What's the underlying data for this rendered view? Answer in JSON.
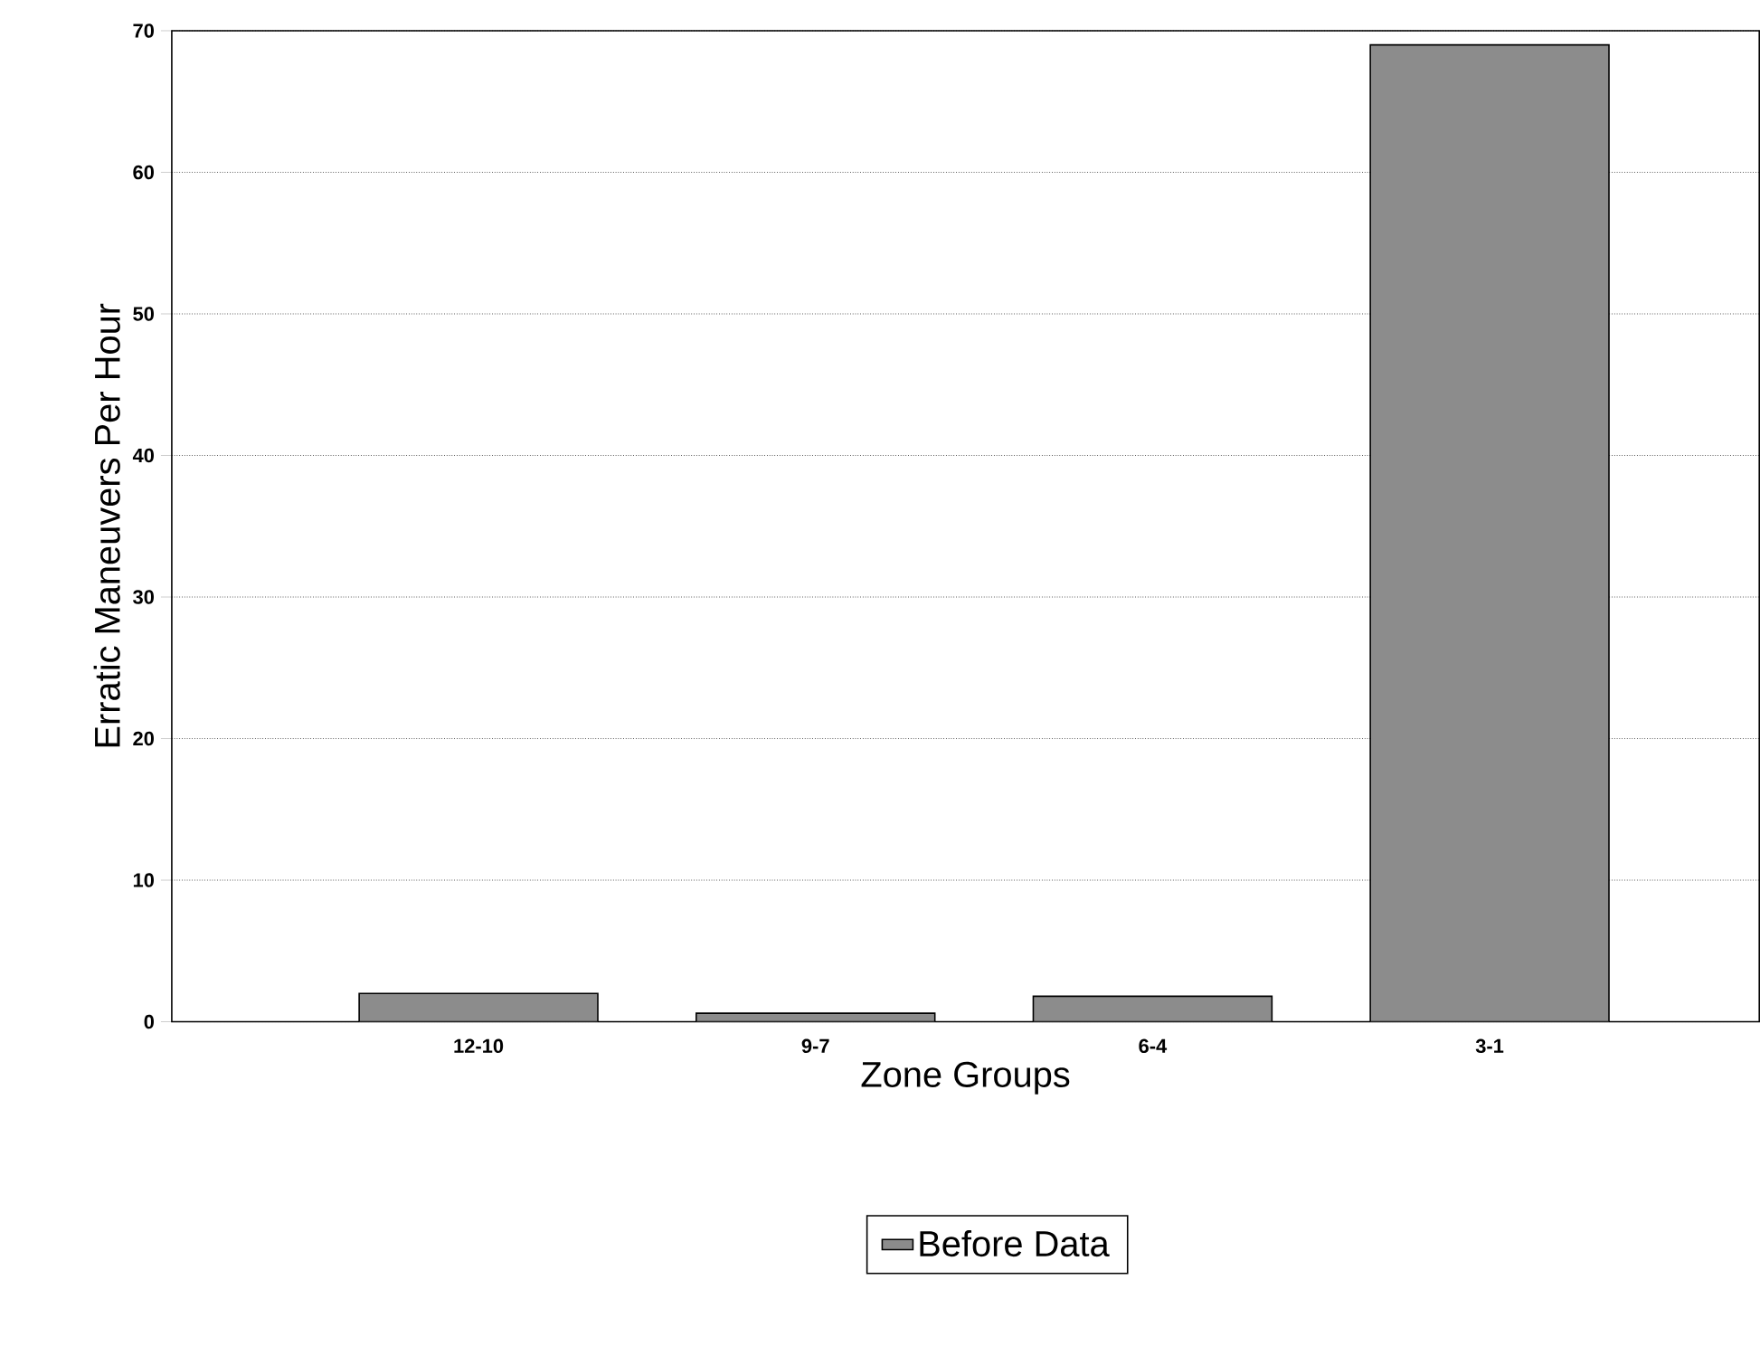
{
  "chart_data": {
    "type": "bar",
    "xlabel": "Zone Groups",
    "ylabel": "Erratic Maneuvers Per Hour",
    "categories": [
      "12-10",
      "9-7",
      "6-4",
      "3-1"
    ],
    "series": [
      {
        "name": "Before Data",
        "color": "#8c8c8c",
        "values": [
          2,
          0.6,
          1.8,
          69
        ]
      }
    ],
    "ylim": [
      0,
      70
    ],
    "yticks": [
      0,
      10,
      20,
      30,
      40,
      50,
      60,
      70
    ],
    "grid": "y",
    "legend": "bottom"
  }
}
